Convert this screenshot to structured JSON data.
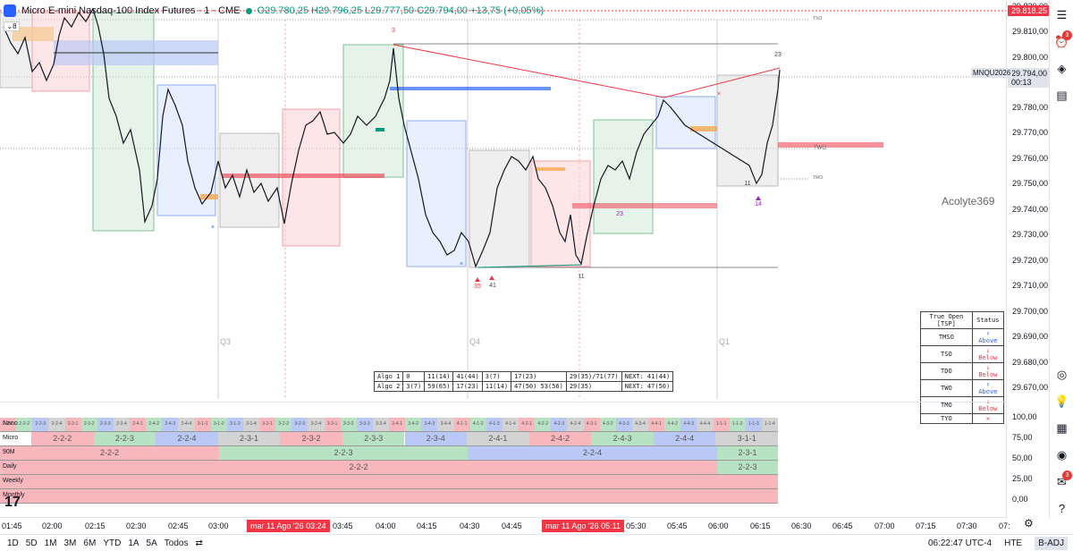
{
  "header": {
    "title": "Micro E-mini Nasdaq-100 Index Futures · 1 · CME",
    "ohlc": "O29.780,25  H29.796,25  L29.777,50  C29.794,00  +13,75 (+0,05%)",
    "interval_box": "8"
  },
  "price_axis": {
    "labels": [
      "29.820,00",
      "29.810,00",
      "29.800,00",
      "29.780,00",
      "29.770,00",
      "29.760,00",
      "29.750,00",
      "29.740,00",
      "29.730,00",
      "29.720,00",
      "29.710,00",
      "29.700,00",
      "29.690,00",
      "29.680,00",
      "29.670,00"
    ],
    "top_price": "29.818,25",
    "symbol_tag": "MNQU2026",
    "current_price": "29.794,00",
    "countdown": "00:13",
    "colors": {
      "top_tag": "#f23645",
      "current_tag": "#e0e3eb"
    }
  },
  "lower_scale": [
    "100,00",
    "75,00",
    "50,00",
    "25,00",
    "0,00"
  ],
  "time_axis": {
    "labels": [
      "01:45",
      "02:00",
      "02:15",
      "02:30",
      "02:45",
      "03:00",
      "03:45",
      "04:00",
      "04:15",
      "04:30",
      "04:45",
      "05:30",
      "05:45",
      "06:00",
      "06:15",
      "06:30",
      "06:45",
      "07:00",
      "07:15",
      "07:30",
      "07:"
    ],
    "highlight_1": "mar 11 Ago '26  03:24",
    "highlight_2": "mar 11 Ago '26  05:11"
  },
  "bottom_bar": {
    "ranges": [
      "1D",
      "5D",
      "1M",
      "3M",
      "6M",
      "YTD",
      "1A",
      "5A",
      "Todos"
    ],
    "clock": "06:22:47 UTC-4",
    "session": "HTE",
    "adj": "B-ADJ"
  },
  "quarters": [
    "Q3",
    "Q4",
    "Q1"
  ],
  "bar_labels": [
    "3",
    "23",
    "35",
    "41",
    "11",
    "23",
    "11",
    "14"
  ],
  "watermark": "Acolyte369",
  "level_labels": {
    "tso": "TSO",
    "two": "TWO",
    "tmo": "TMO"
  },
  "true_open_table": {
    "headers": [
      "True Open [TSP]",
      "Status"
    ],
    "rows": [
      {
        "name": "TMSO",
        "status": "↑ Above",
        "color": "#2962ff"
      },
      {
        "name": "TSO",
        "status": "↓ Below",
        "color": "#f23645"
      },
      {
        "name": "TDO",
        "status": "↓ Below",
        "color": "#f23645"
      },
      {
        "name": "TWO",
        "status": "↑ Above",
        "color": "#2962ff"
      },
      {
        "name": "TMO",
        "status": "↓ Below",
        "color": "#f23645"
      },
      {
        "name": "TYO",
        "status": "✕",
        "color": "#f23645"
      }
    ]
  },
  "algo_table": {
    "rows": [
      [
        "Algo 1",
        "0",
        "11(14)",
        "41(44)",
        "3(7)",
        "17(23)",
        "29(35)/71(77)",
        "NEXT: 41(44)"
      ],
      [
        "Algo 2",
        "3(7)",
        "59(65)",
        "17(23)",
        "11(14)",
        "47(50) 53(56)",
        "29(35)",
        "NEXT: 47(50)"
      ]
    ]
  },
  "lower_panel": {
    "rows": [
      "Nano",
      "Micro",
      "90M",
      "Daily",
      "Weekly",
      "Monthly"
    ],
    "micro_cells": [
      "2-2-2",
      "2-2-3",
      "2-2-4",
      "2-3-1",
      "2-3-2",
      "2-3-3",
      "2-3-4",
      "2-4-1",
      "2-4-2",
      "2-4-3",
      "2-4-4",
      "3-1-1"
    ],
    "m90_cells": [
      "2-2-2",
      "2-2-3",
      "2-2-4",
      "2-3-1"
    ],
    "daily_cells": [
      "2-2-2",
      "2-2-3"
    ],
    "nano_cells": [
      "2-2-1",
      "2-2-2",
      "2-2-3",
      "2-2-4",
      "2-3-1",
      "2-3-2",
      "2-3-3",
      "2-3-4",
      "2-4-1",
      "2-4-2",
      "2-4-3",
      "2-4-4",
      "3-1-1",
      "3-1-2",
      "3-1-3",
      "3-1-4",
      "3-2-1",
      "3-2-2",
      "3-2-3",
      "3-2-4",
      "3-3-1",
      "3-3-2",
      "3-3-3",
      "3-3-4",
      "3-4-1",
      "3-4-2",
      "3-4-3",
      "3-4-4",
      "4-1-1",
      "4-1-2",
      "4-1-3",
      "4-1-4",
      "4-2-1",
      "4-2-2",
      "4-2-3",
      "4-2-4",
      "4-3-1",
      "4-3-2",
      "4-3-3",
      "4-3-4",
      "4-4-1",
      "4-4-2",
      "4-4-3",
      "4-4-4",
      "1-1-1",
      "1-1-2",
      "1-1-3",
      "1-1-4"
    ],
    "colors": {
      "red": "#f7b7bd",
      "green": "#b8e2c4",
      "blue": "#b9c8f4",
      "gray": "#d3d3d3"
    }
  }
}
